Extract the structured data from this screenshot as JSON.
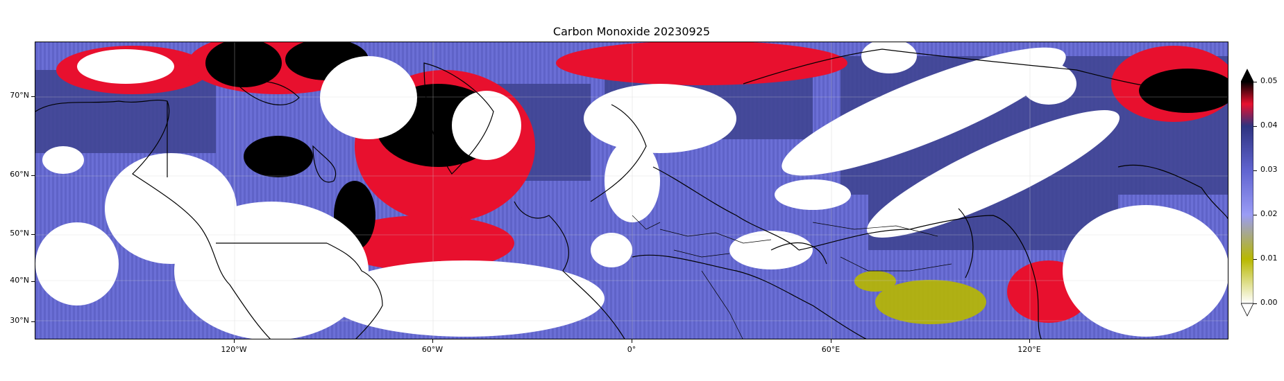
{
  "title": "Carbon Monoxide 20230925",
  "map": {
    "projection": "plate carree",
    "lon_range": [
      -180,
      180
    ],
    "lat_range": [
      25,
      80
    ],
    "lat_ticks": [
      "70°N",
      "60°N",
      "50°N",
      "40°N",
      "30°N"
    ],
    "lon_ticks": [
      "120°W",
      "60°W",
      "0°",
      "60°E",
      "120°E"
    ],
    "gridlines": true,
    "coastlines": true,
    "country_borders": true,
    "missing_data_color": "#ffffff"
  },
  "colorbar": {
    "position": "right",
    "min": 0.0,
    "max": 0.05,
    "extend": "both",
    "ticks": [
      "0.00",
      "0.01",
      "0.02",
      "0.03",
      "0.04",
      "0.05"
    ],
    "colors": [
      "#ffffff",
      "#b8b800",
      "#7a7cf0",
      "#3a3f98",
      "#e8102e",
      "#000000"
    ]
  }
}
